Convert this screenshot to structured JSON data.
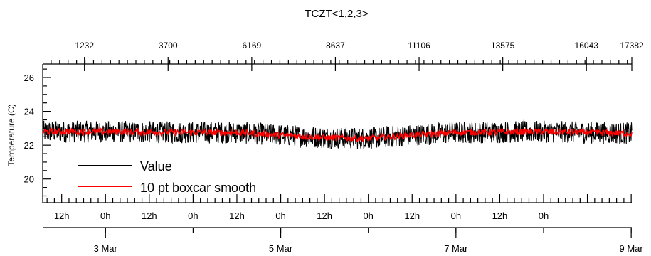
{
  "chart_data": {
    "type": "line",
    "title": "TCZT<1,2,3>",
    "ylabel": "Temperature (C)",
    "ylim": [
      18.6,
      26.8
    ],
    "yticks_major": [
      20,
      22,
      24,
      26
    ],
    "top_axis": {
      "range": [
        0,
        17382
      ],
      "ticks": [
        1232,
        3700,
        6169,
        8637,
        11106,
        13575,
        16043,
        17382
      ],
      "tick_labels": [
        "1232",
        "3700",
        "6169",
        "8637",
        "11106",
        "13575",
        "16043",
        "17382"
      ]
    },
    "x_time": {
      "start": "2 Mar 06:48",
      "end": "9 Mar 00:10",
      "hour_tick_labels": [
        "12h",
        "0h",
        "12h",
        "0h",
        "12h",
        "0h",
        "12h",
        "0h",
        "12h",
        "0h",
        "12h",
        "0h"
      ],
      "date_tick_labels": [
        "3 Mar",
        "5 Mar",
        "7 Mar",
        "9 Mar"
      ]
    },
    "legend": {
      "position": "bottom-left"
    },
    "series": [
      {
        "name": "Value",
        "color": "#000000",
        "style": "noisy",
        "baseline": [
          [
            "2 Mar 06:48",
            22.8
          ],
          [
            "3 Mar 00:00",
            22.8
          ],
          [
            "4 Mar 00:00",
            22.75
          ],
          [
            "4 Mar 12:00",
            22.75
          ],
          [
            "5 Mar 00:00",
            22.6
          ],
          [
            "5 Mar 12:00",
            22.45
          ],
          [
            "6 Mar 00:00",
            22.4
          ],
          [
            "6 Mar 12:00",
            22.6
          ],
          [
            "7 Mar 00:00",
            22.75
          ],
          [
            "8 Mar 00:00",
            22.8
          ],
          [
            "9 Mar 00:10",
            22.7
          ]
        ],
        "spread": 0.65
      },
      {
        "name": "10 pt boxcar smooth",
        "color": "#ff0000",
        "style": "smoothed",
        "baseline": [
          [
            "2 Mar 06:48",
            22.8
          ],
          [
            "3 Mar 00:00",
            22.8
          ],
          [
            "4 Mar 00:00",
            22.75
          ],
          [
            "4 Mar 12:00",
            22.75
          ],
          [
            "5 Mar 00:00",
            22.6
          ],
          [
            "5 Mar 12:00",
            22.45
          ],
          [
            "6 Mar 00:00",
            22.4
          ],
          [
            "6 Mar 12:00",
            22.6
          ],
          [
            "7 Mar 00:00",
            22.75
          ],
          [
            "8 Mar 00:00",
            22.8
          ],
          [
            "9 Mar 00:10",
            22.7
          ]
        ],
        "spread": 0.18
      }
    ]
  }
}
